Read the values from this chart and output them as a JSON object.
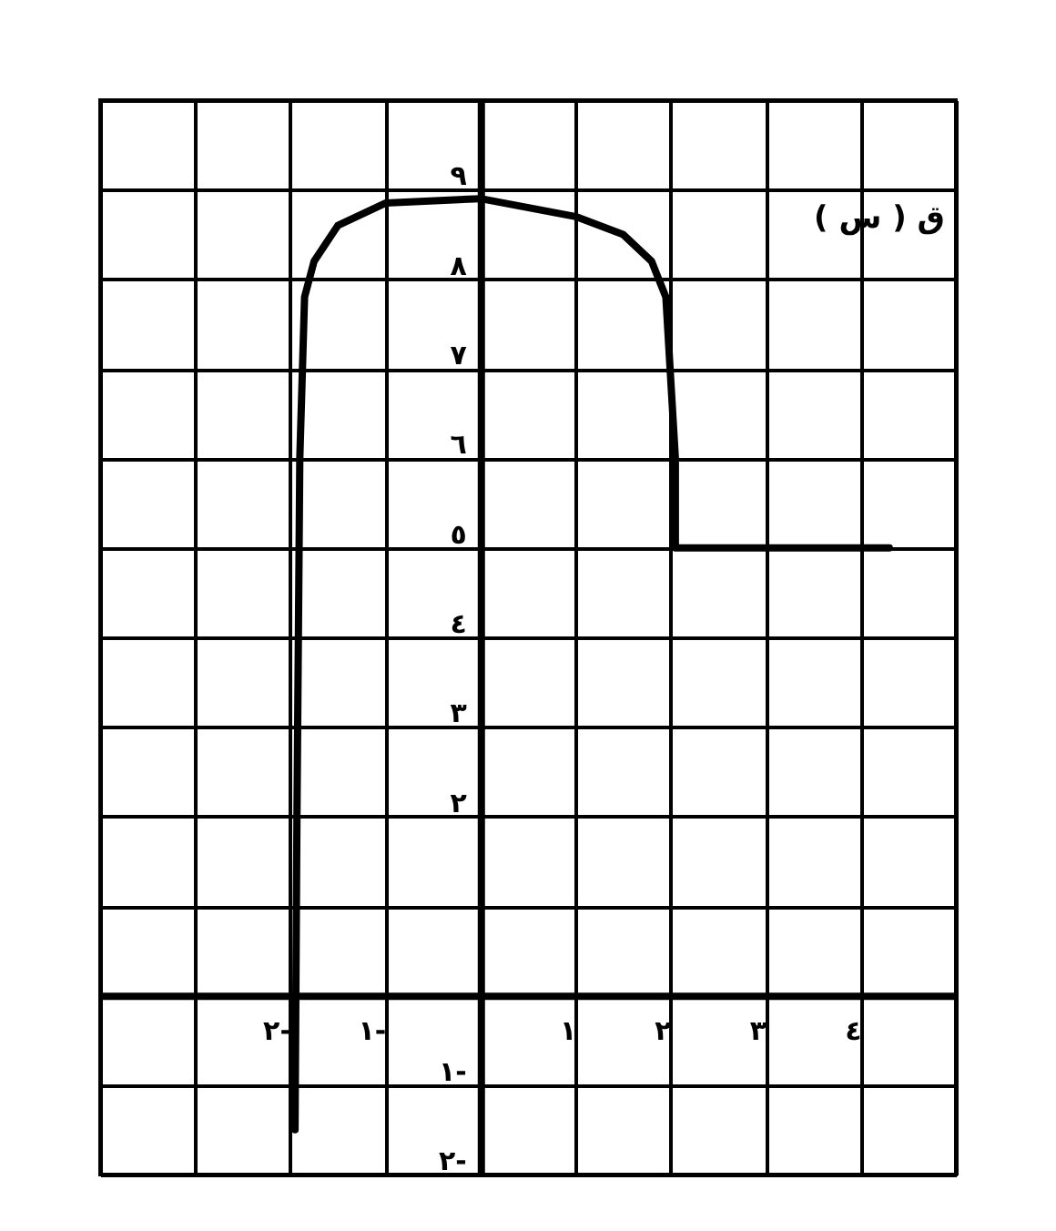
{
  "chart_data": {
    "type": "line",
    "x": [
      -1.95,
      -1.93,
      -1.9,
      -1.85,
      -1.75,
      -1.5,
      -1,
      0,
      1,
      1.5,
      1.8,
      1.95,
      2.05,
      2.05,
      4.3
    ],
    "series": [
      {
        "color": "#000000",
        "values": [
          -1.5,
          2,
          6,
          7.8,
          8.2,
          8.6,
          8.85,
          8.9,
          8.7,
          8.5,
          8.2,
          7.8,
          6,
          5,
          5
        ]
      }
    ],
    "xlim": [
      -4,
      5
    ],
    "ylim": [
      -2,
      10
    ],
    "xticks": [
      {
        "value": -4,
        "label": null
      },
      {
        "value": -3,
        "label": null
      },
      {
        "value": -2,
        "label": "٢-"
      },
      {
        "value": -1,
        "label": "١-"
      },
      {
        "value": 0,
        "label": null
      },
      {
        "value": 1,
        "label": "١"
      },
      {
        "value": 2,
        "label": "٢"
      },
      {
        "value": 3,
        "label": "٣"
      },
      {
        "value": 4,
        "label": "٤"
      },
      {
        "value": 5,
        "label": null
      }
    ],
    "yticks": [
      {
        "value": -2,
        "label": "٢-"
      },
      {
        "value": -1,
        "label": "١-"
      },
      {
        "value": 0,
        "label": null
      },
      {
        "value": 1,
        "label": null
      },
      {
        "value": 2,
        "label": "٢"
      },
      {
        "value": 3,
        "label": "٣"
      },
      {
        "value": 4,
        "label": "٤"
      },
      {
        "value": 5,
        "label": "٥"
      },
      {
        "value": 6,
        "label": "٦"
      },
      {
        "value": 7,
        "label": "٧"
      },
      {
        "value": 8,
        "label": "٨"
      },
      {
        "value": 9,
        "label": "٩"
      },
      {
        "value": 10,
        "label": null
      }
    ],
    "annotations": [
      "ق ( س )"
    ],
    "grid": true,
    "marker": "none",
    "line_style": "solid"
  }
}
